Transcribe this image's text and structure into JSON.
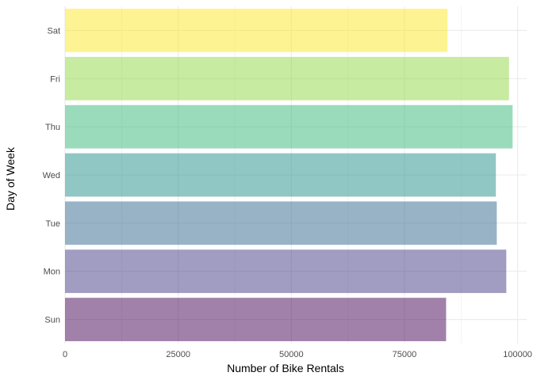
{
  "chart_data": {
    "type": "bar",
    "orientation": "horizontal",
    "xlabel": "Number of Bike Rentals",
    "ylabel": "Day of Week",
    "categories": [
      "Sun",
      "Mon",
      "Tue",
      "Wed",
      "Thu",
      "Fri",
      "Sat"
    ],
    "values": [
      84200,
      97500,
      95400,
      95200,
      98900,
      98100,
      84500
    ],
    "colors": [
      "#440154",
      "#443983",
      "#31688E",
      "#21908C",
      "#35B779",
      "#8FD744",
      "#FDE725"
    ],
    "bar_opacity": 0.5,
    "xlim": [
      0,
      102000
    ],
    "xticks": [
      0,
      25000,
      50000,
      75000,
      100000
    ],
    "xtick_labels": [
      "0",
      "25000",
      "50000",
      "75000",
      "100000"
    ],
    "grid": true,
    "legend": "none"
  }
}
